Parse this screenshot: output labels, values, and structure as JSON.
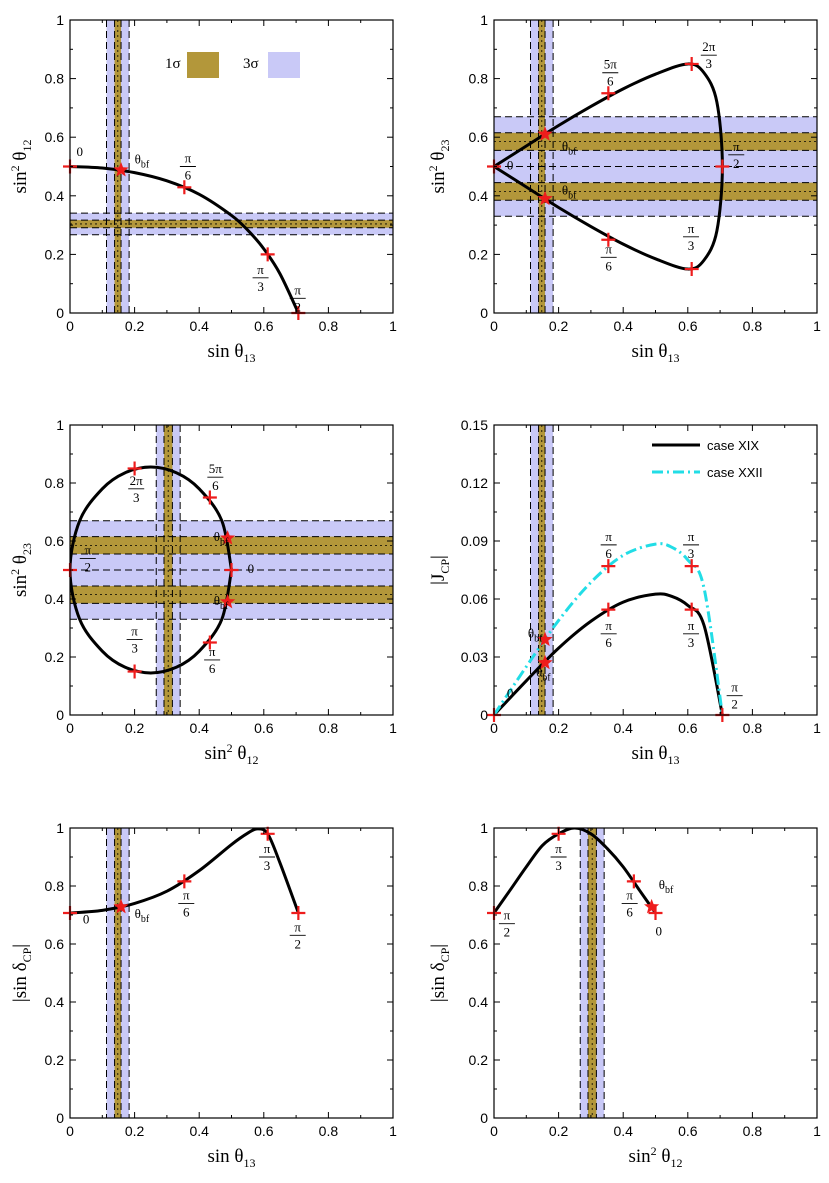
{
  "colors": {
    "band1": "#b3973a",
    "band3": "#c9c9f7",
    "curve": "#000000",
    "curve2": "#22dde6",
    "marker": "#ee1c1c"
  },
  "chart_data": [
    {
      "type": "line",
      "xlabel": "sin θ13",
      "ylabel": "sin² θ12",
      "xlim": [
        0,
        1
      ],
      "ylim": [
        0,
        1
      ],
      "xticks": [
        "0",
        "0.2",
        "0.4",
        "0.6",
        "0.8",
        "1"
      ],
      "yticks": [
        "0",
        "0.2",
        "0.4",
        "0.6",
        "0.8",
        "1"
      ],
      "legend": [
        {
          "label": "1σ"
        },
        {
          "label": "3σ"
        }
      ],
      "vbands": [
        {
          "c": 0.148,
          "h1": 0.01,
          "h3": 0.035
        }
      ],
      "hbands": [
        {
          "c": 0.304,
          "h1": 0.013,
          "h3": 0.037
        }
      ],
      "series": [
        {
          "name": "case XIX",
          "x": [
            0,
            0.1,
            0.2,
            0.3,
            0.4,
            0.5,
            0.55,
            0.6,
            0.65,
            0.7071
          ],
          "y": [
            0.5,
            0.495,
            0.479,
            0.451,
            0.405,
            0.333,
            0.283,
            0.219,
            0.134,
            0
          ]
        }
      ],
      "markers": [
        {
          "x": 0,
          "y": 0.5,
          "label": "0",
          "lx": 0.02,
          "ly": 0.535
        },
        {
          "x": 0.158,
          "y": 0.488,
          "label": "θbf",
          "star": true,
          "lx": 0.2,
          "ly": 0.51
        },
        {
          "x": 0.354,
          "y": 0.429,
          "label": "π/6",
          "lx": 0.365,
          "ly": 0.5
        },
        {
          "x": 0.612,
          "y": 0.2,
          "label": "π/3",
          "lx": 0.59,
          "ly": 0.12
        },
        {
          "x": 0.707,
          "y": 0,
          "label": "π/2",
          "lx": 0.705,
          "ly": 0.05
        }
      ]
    },
    {
      "type": "line",
      "xlabel": "sin θ13",
      "ylabel": "sin² θ23",
      "xlim": [
        0,
        1
      ],
      "ylim": [
        0,
        1
      ],
      "xticks": [
        "0",
        "0.2",
        "0.4",
        "0.6",
        "0.8",
        "1"
      ],
      "yticks": [
        "0",
        "0.2",
        "0.4",
        "0.6",
        "0.8",
        "1"
      ],
      "vbands": [
        {
          "c": 0.148,
          "h1": 0.01,
          "h3": 0.035
        }
      ],
      "hbands": [
        {
          "c": 0.585,
          "h1": 0.03,
          "h3": 0.085
        },
        {
          "c": 0.415,
          "h1": 0.03,
          "h3": 0.085
        }
      ],
      "series": [
        {
          "name": "case XIX",
          "x": [
            0,
            0.1,
            0.2,
            0.3,
            0.4,
            0.5,
            0.6,
            0.65,
            0.69,
            0.7071,
            0.69,
            0.65,
            0.6,
            0.5,
            0.4,
            0.3,
            0.2,
            0.1,
            0
          ],
          "y": [
            0.5,
            0.57,
            0.64,
            0.705,
            0.765,
            0.815,
            0.85,
            0.82,
            0.72,
            0.5,
            0.28,
            0.18,
            0.15,
            0.185,
            0.235,
            0.295,
            0.36,
            0.43,
            0.5
          ]
        }
      ],
      "markers": [
        {
          "x": 0,
          "y": 0.5,
          "label": "0",
          "lx": 0.04,
          "ly": 0.49
        },
        {
          "x": 0.158,
          "y": 0.61,
          "label": "θbf",
          "star": true,
          "lx": 0.21,
          "ly": 0.555
        },
        {
          "x": 0.158,
          "y": 0.39,
          "label": "θbf",
          "star": true,
          "lx": 0.21,
          "ly": 0.405
        },
        {
          "x": 0.354,
          "y": 0.75,
          "label": "5π/6",
          "lx": 0.36,
          "ly": 0.82
        },
        {
          "x": 0.612,
          "y": 0.85,
          "label": "2π/3",
          "lx": 0.665,
          "ly": 0.88
        },
        {
          "x": 0.707,
          "y": 0.5,
          "label": "π/2",
          "lx": 0.75,
          "ly": 0.54
        },
        {
          "x": 0.354,
          "y": 0.25,
          "label": "π/6",
          "lx": 0.355,
          "ly": 0.19
        },
        {
          "x": 0.612,
          "y": 0.15,
          "label": "π/3",
          "lx": 0.61,
          "ly": 0.26
        }
      ]
    },
    {
      "type": "line",
      "xlabel": "sin² θ12",
      "ylabel": "sin² θ23",
      "xlim": [
        0,
        1
      ],
      "ylim": [
        0,
        1
      ],
      "xticks": [
        "0",
        "0.2",
        "0.4",
        "0.6",
        "0.8",
        "1"
      ],
      "yticks": [
        "0",
        "0.2",
        "0.4",
        "0.6",
        "0.8",
        "1"
      ],
      "vbands": [
        {
          "c": 0.304,
          "h1": 0.013,
          "h3": 0.037
        }
      ],
      "hbands": [
        {
          "c": 0.585,
          "h1": 0.03,
          "h3": 0.085
        },
        {
          "c": 0.415,
          "h1": 0.03,
          "h3": 0.085
        }
      ],
      "series": [
        {
          "name": "case XIX",
          "x": [
            0.5,
            0.47,
            0.4,
            0.33,
            0.25,
            0.17,
            0.1,
            0.03,
            0,
            0.03,
            0.1,
            0.17,
            0.25,
            0.33,
            0.4,
            0.47,
            0.5
          ],
          "y": [
            0.5,
            0.67,
            0.78,
            0.835,
            0.855,
            0.835,
            0.78,
            0.67,
            0.5,
            0.33,
            0.22,
            0.165,
            0.145,
            0.165,
            0.22,
            0.33,
            0.5
          ]
        }
      ],
      "markers": [
        {
          "x": 0,
          "y": 0.5,
          "label": "π/2",
          "lx": 0.055,
          "ly": 0.54
        },
        {
          "x": 0.2,
          "y": 0.85,
          "label": "2π/3",
          "lx": 0.205,
          "ly": 0.78
        },
        {
          "x": 0.433,
          "y": 0.75,
          "label": "5π/6",
          "lx": 0.45,
          "ly": 0.82
        },
        {
          "x": 0.488,
          "y": 0.61,
          "label": "θbf",
          "star": true,
          "lx": 0.445,
          "ly": 0.6
        },
        {
          "x": 0.5,
          "y": 0.5,
          "label": "0",
          "lx": 0.55,
          "ly": 0.49
        },
        {
          "x": 0.488,
          "y": 0.39,
          "label": "θbf",
          "star": true,
          "lx": 0.445,
          "ly": 0.38
        },
        {
          "x": 0.433,
          "y": 0.25,
          "label": "π/6",
          "lx": 0.44,
          "ly": 0.19
        },
        {
          "x": 0.2,
          "y": 0.15,
          "label": "π/3",
          "lx": 0.2,
          "ly": 0.26
        }
      ]
    },
    {
      "type": "line",
      "xlabel": "sin θ13",
      "ylabel": "|J_CP|",
      "xlim": [
        0,
        1
      ],
      "ylim": [
        0,
        0.15
      ],
      "xticks": [
        "0",
        "0.2",
        "0.4",
        "0.6",
        "0.8",
        "1"
      ],
      "yticks": [
        "0",
        "0.03",
        "0.06",
        "0.09",
        "0.12",
        "0.15"
      ],
      "legend": [
        {
          "label": "case XIX"
        },
        {
          "label": "case XXII"
        }
      ],
      "vbands": [
        {
          "c": 0.148,
          "h1": 0.01,
          "h3": 0.035
        }
      ],
      "hbands": [],
      "series": [
        {
          "name": "case XIX",
          "x": [
            0,
            0.1,
            0.2,
            0.3,
            0.4,
            0.5,
            0.55,
            0.6,
            0.65,
            0.7071
          ],
          "y": [
            0,
            0.0177,
            0.0346,
            0.0485,
            0.0584,
            0.0625,
            0.0614,
            0.0567,
            0.0465,
            0
          ]
        },
        {
          "name": "case XXII",
          "x": [
            0,
            0.1,
            0.2,
            0.3,
            0.4,
            0.5,
            0.55,
            0.6,
            0.65,
            0.7071
          ],
          "y": [
            0,
            0.025,
            0.0489,
            0.0686,
            0.0826,
            0.0884,
            0.0868,
            0.0802,
            0.0658,
            0
          ]
        }
      ],
      "markers": [
        {
          "x": 0,
          "y": 0,
          "label": "0",
          "lx": 0.04,
          "ly": 0.009
        },
        {
          "x": 0.158,
          "y": 0.027,
          "label": "θbf",
          "star": true,
          "lx": 0.13,
          "ly": 0.02
        },
        {
          "x": 0.158,
          "y": 0.039,
          "label": "θbf",
          "star": true,
          "lx": 0.105,
          "ly": 0.04
        },
        {
          "x": 0.354,
          "y": 0.0545,
          "label": "π/6",
          "lx": 0.355,
          "ly": 0.042
        },
        {
          "x": 0.612,
          "y": 0.0545,
          "label": "π/3",
          "lx": 0.61,
          "ly": 0.042
        },
        {
          "x": 0.354,
          "y": 0.077,
          "label": "π/6",
          "lx": 0.355,
          "ly": 0.088
        },
        {
          "x": 0.612,
          "y": 0.077,
          "label": "π/3",
          "lx": 0.61,
          "ly": 0.088
        },
        {
          "x": 0.707,
          "y": 0,
          "label": "π/2",
          "lx": 0.745,
          "ly": 0.01
        }
      ]
    },
    {
      "type": "line",
      "xlabel": "sin θ13",
      "ylabel": "|sin δ_CP|",
      "xlim": [
        0,
        1
      ],
      "ylim": [
        0,
        1
      ],
      "xticks": [
        "0",
        "0.2",
        "0.4",
        "0.6",
        "0.8",
        "1"
      ],
      "yticks": [
        "0",
        "0.2",
        "0.4",
        "0.6",
        "0.8",
        "1"
      ],
      "vbands": [
        {
          "c": 0.148,
          "h1": 0.01,
          "h3": 0.035
        }
      ],
      "hbands": [],
      "series": [
        {
          "name": "case XIX",
          "x": [
            0,
            0.1,
            0.2,
            0.3,
            0.4,
            0.5,
            0.55,
            0.58,
            0.612,
            0.65,
            0.7071
          ],
          "y": [
            0.707,
            0.716,
            0.74,
            0.782,
            0.853,
            0.943,
            0.982,
            0.997,
            0.98,
            0.88,
            0.707
          ]
        }
      ],
      "markers": [
        {
          "x": 0,
          "y": 0.707,
          "label": "0",
          "lx": 0.04,
          "ly": 0.67
        },
        {
          "x": 0.158,
          "y": 0.728,
          "label": "θbf",
          "star": true,
          "lx": 0.2,
          "ly": 0.69
        },
        {
          "x": 0.354,
          "y": 0.816,
          "label": "π/6",
          "lx": 0.36,
          "ly": 0.74
        },
        {
          "x": 0.612,
          "y": 0.98,
          "label": "π/3",
          "lx": 0.61,
          "ly": 0.9
        },
        {
          "x": 0.707,
          "y": 0.707,
          "label": "π/2",
          "lx": 0.705,
          "ly": 0.63
        }
      ]
    },
    {
      "type": "line",
      "xlabel": "sin² θ12",
      "ylabel": "|sin δ_CP|",
      "xlim": [
        0,
        1
      ],
      "ylim": [
        0,
        1
      ],
      "xticks": [
        "0",
        "0.2",
        "0.4",
        "0.6",
        "0.8",
        "1"
      ],
      "yticks": [
        "0",
        "0.2",
        "0.4",
        "0.6",
        "0.8",
        "1"
      ],
      "vbands": [
        {
          "c": 0.304,
          "h1": 0.013,
          "h3": 0.037
        }
      ],
      "hbands": [],
      "series": [
        {
          "name": "case XIX",
          "x": [
            0,
            0.05,
            0.1,
            0.15,
            0.2,
            0.25,
            0.3,
            0.35,
            0.4,
            0.45,
            0.5
          ],
          "y": [
            0.707,
            0.786,
            0.866,
            0.94,
            0.98,
            1.0,
            0.98,
            0.93,
            0.866,
            0.786,
            0.707
          ]
        }
      ],
      "markers": [
        {
          "x": 0,
          "y": 0.707,
          "label": "π/2",
          "lx": 0.04,
          "ly": 0.67
        },
        {
          "x": 0.2,
          "y": 0.98,
          "label": "π/3",
          "lx": 0.2,
          "ly": 0.9
        },
        {
          "x": 0.433,
          "y": 0.816,
          "label": "π/6",
          "lx": 0.42,
          "ly": 0.74
        },
        {
          "x": 0.488,
          "y": 0.728,
          "label": "θbf",
          "star": true,
          "lx": 0.51,
          "ly": 0.79
        },
        {
          "x": 0.5,
          "y": 0.707,
          "label": "0",
          "lx": 0.5,
          "ly": 0.63
        }
      ]
    }
  ]
}
